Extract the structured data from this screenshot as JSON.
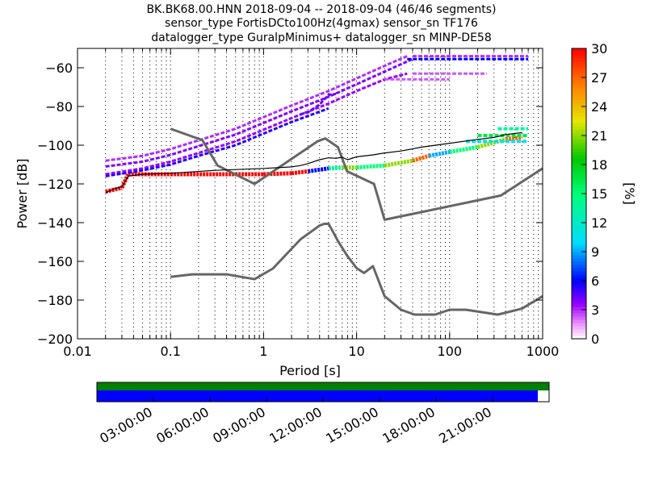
{
  "chart_data": [
    {
      "type": "heatmap",
      "title": [
        "BK.BK68.00.HNN   2018-09-04 -- 2018-09-04  (46/46 segments)",
        "sensor_type FortisDCto100Hz(4gmax) sensor_sn TF176",
        "datalogger_type GuralpMinimus+ datalogger_sn MINP-DE58"
      ],
      "xlabel": "Period [s]",
      "ylabel": "Power [dB]",
      "xscale": "log",
      "xlim": [
        0.01,
        1000
      ],
      "ylim": [
        -200,
        -50
      ],
      "x_ticks": [
        0.01,
        0.1,
        1,
        10,
        100,
        1000
      ],
      "x_tick_labels": [
        "0.01",
        "0.1",
        "1",
        "10",
        "100",
        "1000"
      ],
      "y_ticks": [
        -200,
        -180,
        -160,
        -140,
        -120,
        -100,
        -80,
        -60
      ],
      "y_tick_labels": [
        "−200",
        "−180",
        "−160",
        "−140",
        "−120",
        "−100",
        "−80",
        "−60"
      ],
      "grid": "vertical-dotted",
      "colorbar": {
        "label": "[%]",
        "ticks": [
          0,
          3,
          6,
          9,
          12,
          15,
          18,
          21,
          24,
          27,
          30
        ],
        "range": [
          0,
          30
        ],
        "colormap": "pqlx"
      },
      "noise_model_high": {
        "x": [
          0.1,
          0.22,
          0.32,
          0.8,
          3.8,
          4.6,
          6.3,
          7.9,
          15.4,
          20,
          354.8,
          1000
        ],
        "y": [
          -91.5,
          -97.4,
          -110.5,
          -120,
          -98,
          -96.5,
          -101,
          -113.5,
          -120,
          -138.5,
          -126,
          -112
        ]
      },
      "noise_model_low": {
        "x": [
          0.1,
          0.17,
          0.4,
          0.8,
          1.26,
          2.5,
          4,
          4.5,
          5,
          5.5,
          6.3,
          7.9,
          10,
          12,
          15,
          20,
          30,
          42,
          70,
          100,
          150,
          330,
          600,
          1000
        ],
        "y": [
          -168,
          -166.7,
          -166.7,
          -169.2,
          -163.7,
          -148.6,
          -141.5,
          -140.6,
          -140.6,
          -144.2,
          -149.5,
          -157,
          -163.5,
          -166,
          -162.5,
          -178,
          -185,
          -187.5,
          -187.5,
          -185,
          -185,
          -187.5,
          -184.4,
          -178
        ]
      },
      "mean_curve": {
        "x": [
          0.02,
          0.025,
          0.03,
          0.035,
          0.05,
          0.1,
          0.3,
          1,
          2,
          2.5,
          3,
          4,
          5,
          6,
          7,
          8,
          10,
          15,
          20,
          30,
          50,
          100,
          200,
          300,
          400,
          600
        ],
        "y": [
          -124.5,
          -122.5,
          -121.5,
          -116,
          -115,
          -114.5,
          -113,
          -112,
          -111.2,
          -110.5,
          -109.5,
          -107.5,
          -106.5,
          -106.8,
          -106.2,
          -107.5,
          -106,
          -105,
          -104,
          -103,
          -101,
          -99,
          -97,
          -96,
          -94.5,
          -93.5
        ]
      },
      "density_bands": [
        {
          "name": "main",
          "x": [
            0.02,
            0.03,
            0.035,
            0.1,
            1,
            2,
            3,
            5,
            7,
            10,
            20,
            40,
            60,
            100,
            200,
            400,
            600
          ],
          "y": [
            -124,
            -122,
            -115,
            -115,
            -115,
            -114.5,
            -113.5,
            -112,
            -111.5,
            -111.5,
            -110.5,
            -108,
            -105.5,
            -103.5,
            -101,
            -97,
            -96
          ]
        },
        {
          "name": "upper-1",
          "x": [
            0.02,
            0.05,
            0.1,
            0.2,
            0.5,
            1,
            2,
            5,
            10,
            20,
            35
          ],
          "y": [
            -108,
            -105.5,
            -102,
            -97.5,
            -91.5,
            -85.5,
            -79.5,
            -72,
            -65.5,
            -59,
            -54
          ]
        },
        {
          "name": "upper-2",
          "x": [
            0.02,
            0.05,
            0.1,
            0.2,
            0.5,
            1,
            2,
            5,
            10,
            20,
            40
          ],
          "y": [
            -111,
            -108.5,
            -105,
            -100.5,
            -94.5,
            -88.5,
            -82.5,
            -75,
            -68.5,
            -62,
            -55.5
          ]
        },
        {
          "name": "upper-3",
          "x": [
            0.02,
            0.05,
            0.1,
            0.2,
            0.5,
            1,
            2,
            5,
            10,
            20,
            35
          ],
          "y": [
            -115,
            -112,
            -108.5,
            -104,
            -98,
            -92,
            -86,
            -78.5,
            -72,
            -66,
            -63
          ]
        },
        {
          "name": "upper-4",
          "x": [
            0.02,
            0.05,
            0.1,
            0.2,
            0.5,
            1,
            2,
            5
          ],
          "y": [
            -116,
            -113,
            -110,
            -105.5,
            -100,
            -94,
            -88,
            -81
          ]
        },
        {
          "name": "upper-5",
          "x": [
            2.5,
            3,
            4,
            5,
            6
          ],
          "y": [
            -84,
            -83,
            -79,
            -74,
            -73.5
          ]
        },
        {
          "name": "line-54",
          "x": [
            40,
            50,
            100,
            200,
            400,
            700
          ],
          "y": [
            -54,
            -54,
            -54,
            -54,
            -54,
            -54
          ]
        },
        {
          "name": "line-55",
          "x": [
            35,
            50,
            100,
            200,
            400,
            700
          ],
          "y": [
            -55.5,
            -55.5,
            -55.5,
            -55.5,
            -55.5,
            -55.5
          ]
        },
        {
          "name": "line-63",
          "x": [
            40,
            70,
            100,
            150,
            250
          ],
          "y": [
            -63,
            -63,
            -63,
            -63,
            -63
          ]
        },
        {
          "name": "line-66",
          "x": [
            20,
            40,
            60,
            100
          ],
          "y": [
            -66,
            -66,
            -66,
            -66
          ]
        },
        {
          "name": "stack-top",
          "x": [
            330,
            400,
            500,
            600,
            700
          ],
          "y": [
            -91.5,
            -91.5,
            -91.5,
            -91.5,
            -91.5
          ]
        },
        {
          "name": "stack-mid",
          "x": [
            200,
            300,
            400,
            500,
            600,
            700
          ],
          "y": [
            -95,
            -95,
            -95,
            -95,
            -95,
            -95
          ]
        },
        {
          "name": "stack-low",
          "x": [
            150,
            200,
            300,
            400,
            500,
            600,
            700
          ],
          "y": [
            -98,
            -98,
            -98,
            -98,
            -98,
            -98,
            -98
          ]
        }
      ]
    },
    {
      "type": "timeline",
      "x_tick_labels": [
        "03:00:00",
        "06:00:00",
        "09:00:00",
        "12:00:00",
        "15:00:00",
        "18:00:00",
        "21:00:00"
      ],
      "x_ticks_hours": [
        3,
        6,
        9,
        12,
        15,
        18,
        21
      ],
      "range_hours": [
        0,
        24
      ],
      "top_bar_coverage_hours": [
        [
          0,
          24
        ]
      ],
      "bottom_bar_coverage_hours": [
        [
          0,
          23.4
        ]
      ],
      "colors": {
        "top": "#008000",
        "bottom": "#0000ff"
      }
    }
  ]
}
